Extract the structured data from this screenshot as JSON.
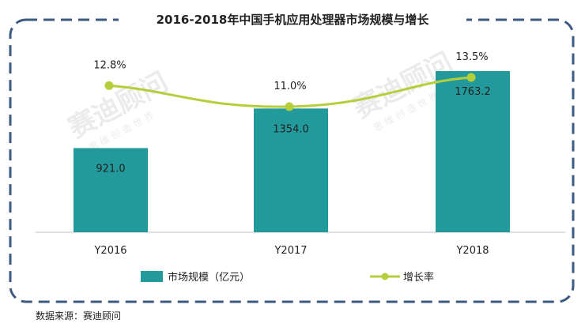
{
  "title": "2016-2018年中国手机应用处理器市场规模与增长",
  "source": "数据来源：赛迪顾问",
  "watermark": "赛迪顾问",
  "watermark_sub": "思 维 创 造 世 界",
  "colors": {
    "bar": "#22999a",
    "line": "#b5cf3b",
    "border": "#3d5a80",
    "axis": "#bfbfbf"
  },
  "chart_data": {
    "type": "bar+line",
    "categories": [
      "Y2016",
      "Y2017",
      "Y2018"
    ],
    "series": [
      {
        "name": "市场规模（亿元）",
        "type": "bar",
        "values": [
          921.0,
          1354.0,
          1763.2
        ],
        "labels": [
          "921.0",
          "1354.0",
          "1763.2"
        ]
      },
      {
        "name": "增长率",
        "type": "line",
        "values": [
          12.8,
          11.0,
          13.5
        ],
        "labels": [
          "12.8%",
          "11.0%",
          "13.5%"
        ]
      }
    ],
    "legend": "bottom",
    "grid": false
  }
}
